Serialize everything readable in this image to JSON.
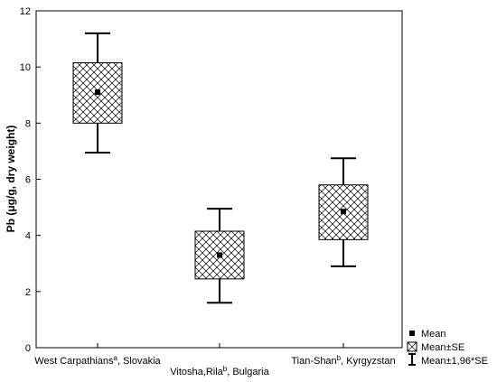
{
  "chart_data": {
    "type": "box",
    "ylabel": "Pb (μg/g, dry weight)",
    "ylim": [
      0,
      12
    ],
    "yticks": [
      "0",
      "2",
      "4",
      "6",
      "8",
      "10",
      "12"
    ],
    "groups": [
      {
        "label": "West Carpathians",
        "sup": "a",
        "suffix": ", Slovakia",
        "mean": 9.1,
        "se_low": 8.0,
        "se_high": 10.15,
        "ci_low": 6.95,
        "ci_high": 11.2
      },
      {
        "label": "Vitosha,Rila",
        "sup": "b",
        "suffix": ", Bulgaria",
        "mean": 3.3,
        "se_low": 2.45,
        "se_high": 4.15,
        "ci_low": 1.6,
        "ci_high": 4.95
      },
      {
        "label": "Tian-Shan",
        "sup": "b",
        "suffix": ", Kyrgyzstan",
        "mean": 4.85,
        "se_low": 3.85,
        "se_high": 5.8,
        "ci_low": 2.9,
        "ci_high": 6.75
      }
    ],
    "legend": {
      "position": "bottom-right",
      "items": [
        "Mean",
        "Mean±SE",
        "Mean±1,96*SE"
      ]
    }
  }
}
